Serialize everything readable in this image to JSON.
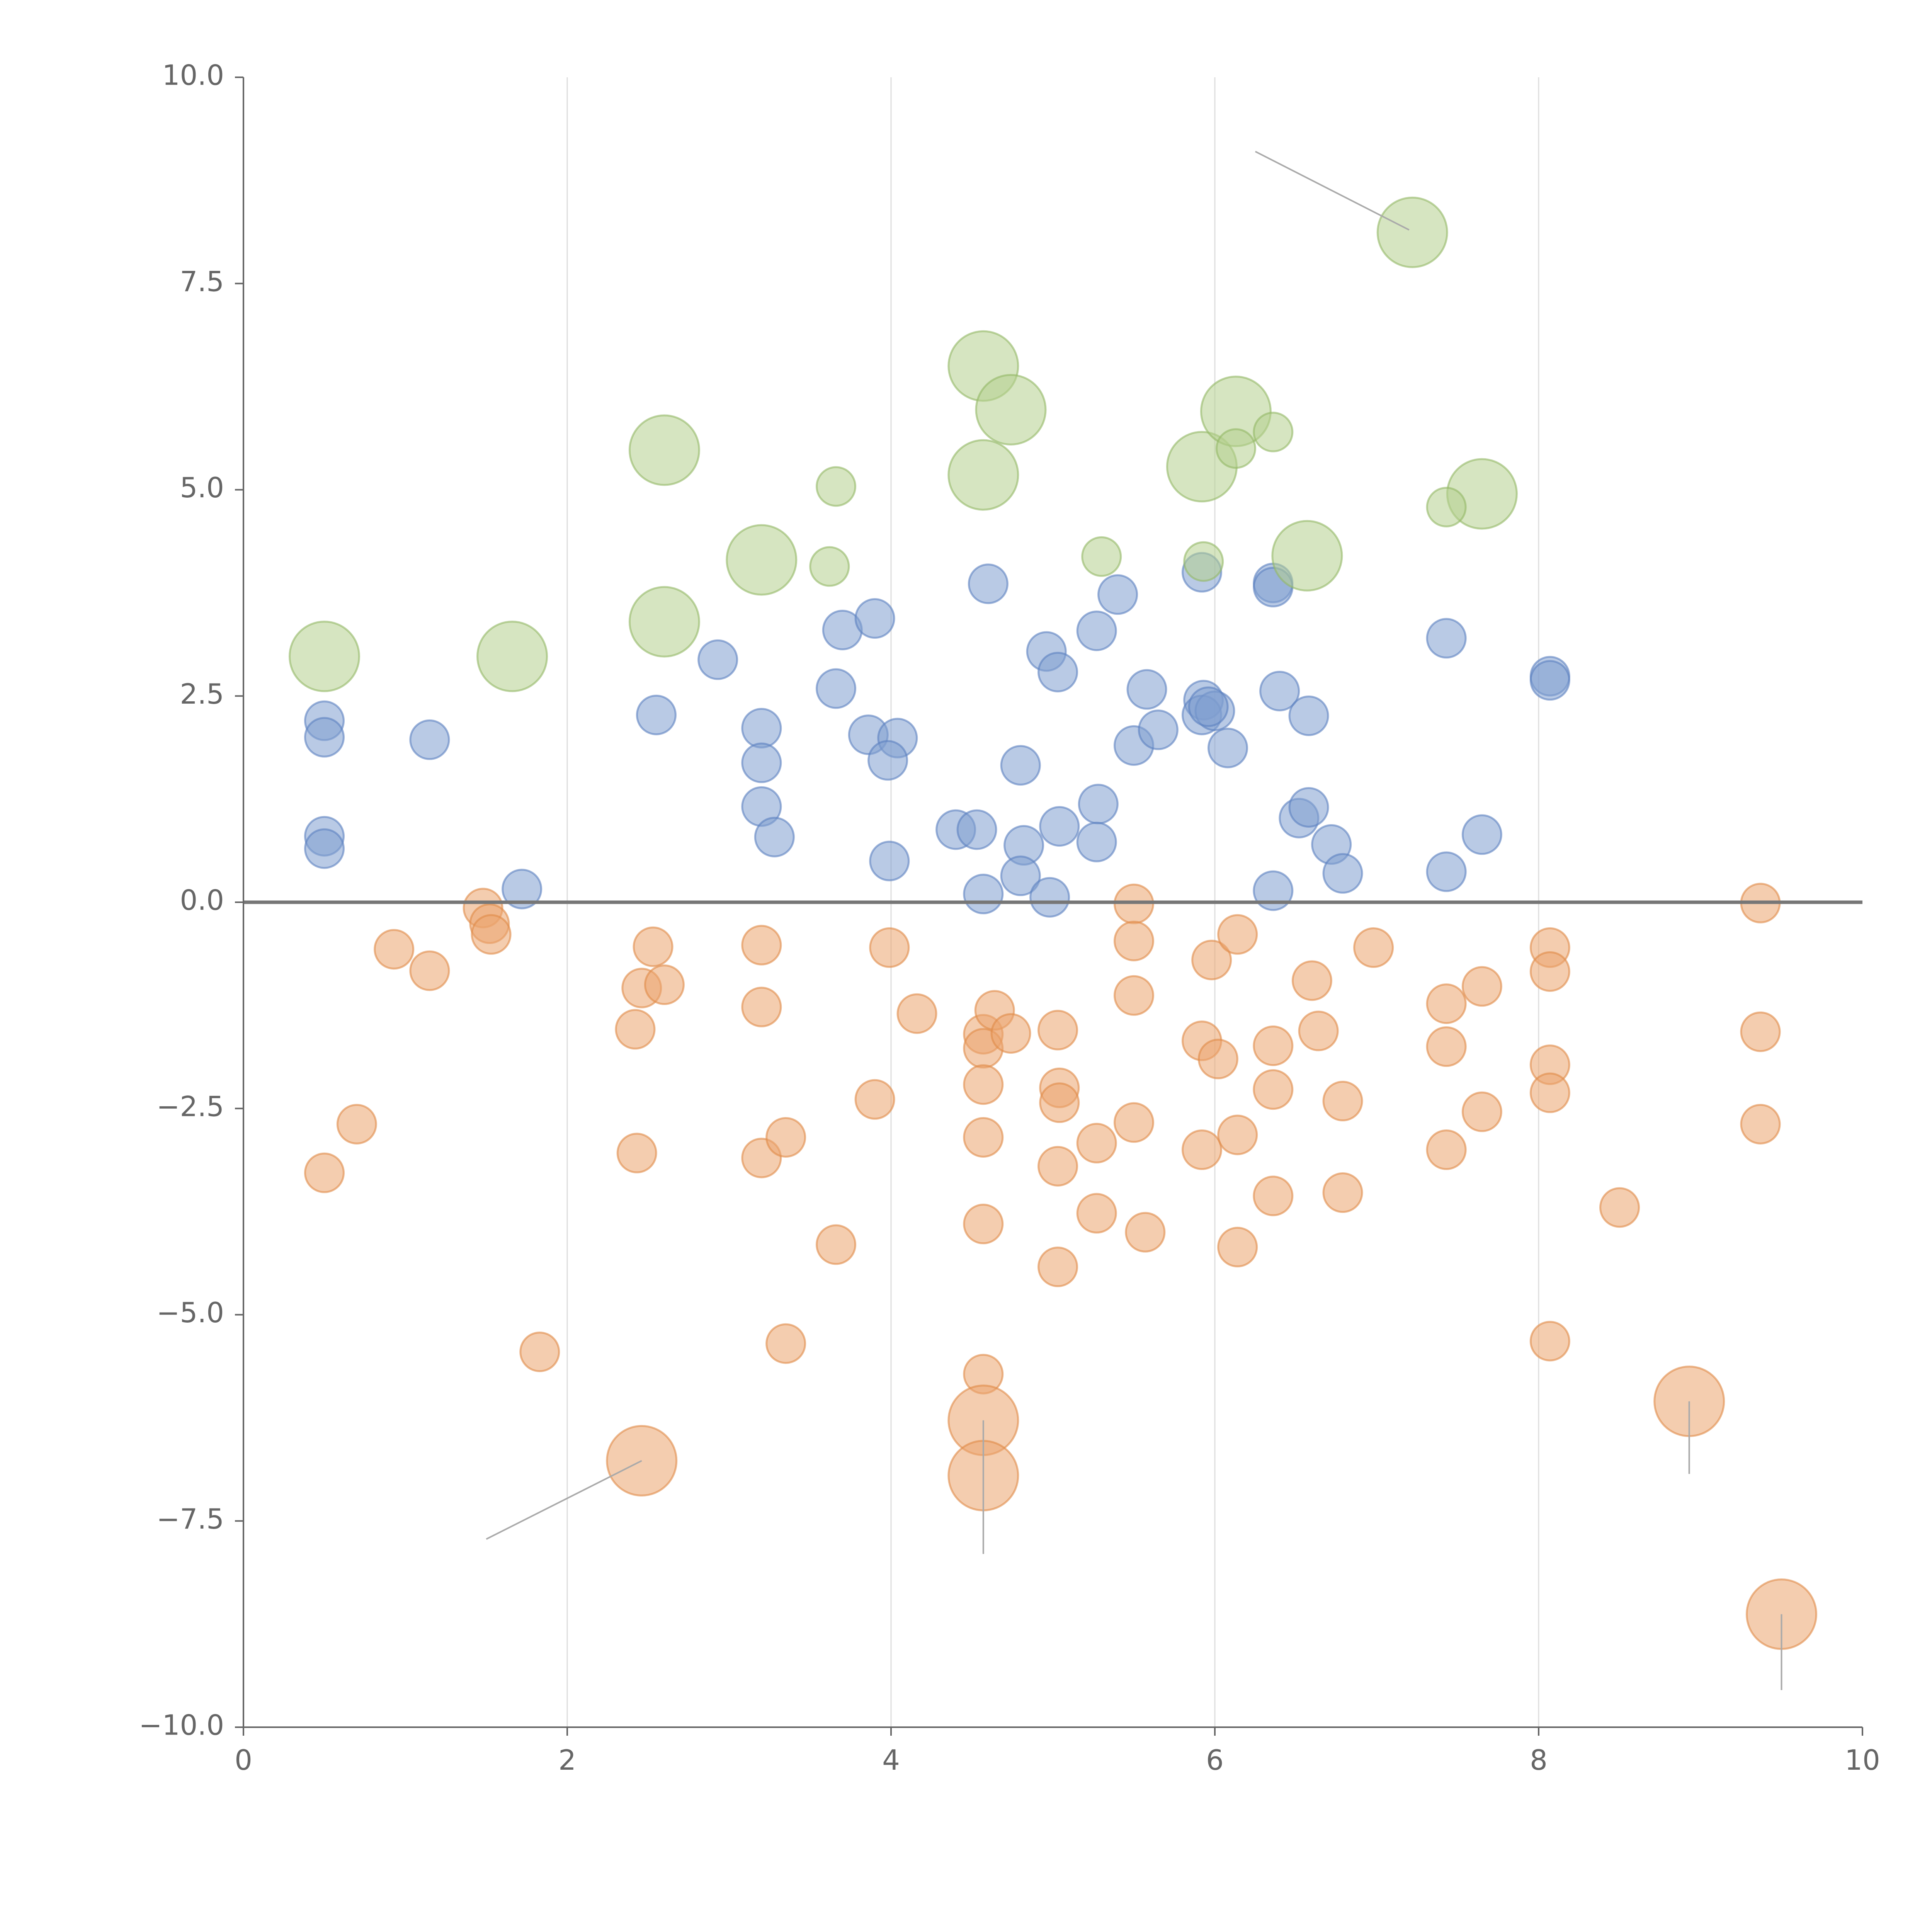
{
  "chart_data": {
    "type": "scatter",
    "title": "",
    "xlabel": "",
    "ylabel": "",
    "xlim": [
      0,
      10
    ],
    "ylim": [
      -10,
      10
    ],
    "x_ticks": [
      0,
      2,
      4,
      6,
      8,
      10
    ],
    "y_ticks": [
      10,
      7.5,
      5,
      2.5,
      0,
      -2.5,
      -5,
      -7.5,
      -10
    ],
    "x_tick_labels": [
      "0",
      "2",
      "4",
      "6",
      "8",
      "10"
    ],
    "y_tick_labels": [
      "10.0",
      "7.5",
      "5.0",
      "2.5",
      "0.0",
      "−2.5",
      "−5.0",
      "−7.5",
      "−10.0"
    ],
    "grid": "vertical",
    "reference_line_y": 0,
    "colors": {
      "blue": "#7f9fd0",
      "blue_stroke": "#5b80c0",
      "orange": "#eba46e",
      "orange_stroke": "#e08a47",
      "green": "#b5d08e",
      "green_stroke": "#93b766",
      "axis": "#666666"
    },
    "series": [
      {
        "name": "blue",
        "color_key": "blue",
        "size": 1,
        "points": [
          [
            0.5,
            2.2
          ],
          [
            0.5,
            2.0
          ],
          [
            0.5,
            0.8
          ],
          [
            0.5,
            0.65
          ],
          [
            1.15,
            1.97
          ],
          [
            1.72,
            0.16
          ],
          [
            2.55,
            2.27
          ],
          [
            2.93,
            2.94
          ],
          [
            3.2,
            2.11
          ],
          [
            3.2,
            1.69
          ],
          [
            3.2,
            1.16
          ],
          [
            3.28,
            0.79
          ],
          [
            3.66,
            2.59
          ],
          [
            3.7,
            3.3
          ],
          [
            3.9,
            3.44
          ],
          [
            3.86,
            2.03
          ],
          [
            4.04,
            1.99
          ],
          [
            3.98,
            1.72
          ],
          [
            3.99,
            0.5
          ],
          [
            4.6,
            3.86
          ],
          [
            4.4,
            0.88
          ],
          [
            4.53,
            0.88
          ],
          [
            4.57,
            0.1
          ],
          [
            4.8,
            1.66
          ],
          [
            4.82,
            0.69
          ],
          [
            4.8,
            0.32
          ],
          [
            4.98,
            0.06
          ],
          [
            4.96,
            3.04
          ],
          [
            5.03,
            2.79
          ],
          [
            5.04,
            0.92
          ],
          [
            5.27,
            3.29
          ],
          [
            5.4,
            3.73
          ],
          [
            5.28,
            1.19
          ],
          [
            5.27,
            0.73
          ],
          [
            5.5,
            1.9
          ],
          [
            5.58,
            2.58
          ],
          [
            5.65,
            2.09
          ],
          [
            5.92,
            4.0
          ],
          [
            5.93,
            2.45
          ],
          [
            5.92,
            2.27
          ],
          [
            6.0,
            2.32
          ],
          [
            5.96,
            2.37
          ],
          [
            6.08,
            1.87
          ],
          [
            6.36,
            3.87
          ],
          [
            6.36,
            3.82
          ],
          [
            6.4,
            2.56
          ],
          [
            6.58,
            2.26
          ],
          [
            6.36,
            0.14
          ],
          [
            6.52,
            1.02
          ],
          [
            6.58,
            1.15
          ],
          [
            6.72,
            0.7
          ],
          [
            6.79,
            0.35
          ],
          [
            7.43,
            3.2
          ],
          [
            7.43,
            0.37
          ],
          [
            7.65,
            0.82
          ],
          [
            8.07,
            2.74
          ],
          [
            8.07,
            2.69
          ]
        ]
      },
      {
        "name": "orange",
        "color_key": "orange",
        "size": 1,
        "points": [
          [
            0.5,
            -3.28
          ],
          [
            0.7,
            -2.69
          ],
          [
            0.93,
            -0.57
          ],
          [
            1.15,
            -0.83
          ],
          [
            1.48,
            -0.07
          ],
          [
            1.52,
            -0.26
          ],
          [
            1.53,
            -0.39
          ],
          [
            1.83,
            -5.45
          ],
          [
            2.42,
            -1.54
          ],
          [
            2.43,
            -3.04
          ],
          [
            2.46,
            -1.04
          ],
          [
            2.53,
            -0.54
          ],
          [
            2.6,
            -1.0
          ],
          [
            3.2,
            -0.52
          ],
          [
            3.2,
            -1.27
          ],
          [
            3.2,
            -3.1
          ],
          [
            3.35,
            -2.85
          ],
          [
            3.35,
            -5.35
          ],
          [
            3.66,
            -4.15
          ],
          [
            3.9,
            -2.39
          ],
          [
            3.99,
            -0.55
          ],
          [
            4.16,
            -1.35
          ],
          [
            4.57,
            -1.6
          ],
          [
            4.57,
            -1.77
          ],
          [
            4.57,
            -2.21
          ],
          [
            4.57,
            -2.85
          ],
          [
            4.57,
            -3.9
          ],
          [
            4.57,
            -5.72
          ],
          [
            4.64,
            -1.31
          ],
          [
            4.74,
            -1.59
          ],
          [
            5.03,
            -1.55
          ],
          [
            5.04,
            -2.25
          ],
          [
            5.04,
            -2.43
          ],
          [
            5.03,
            -3.2
          ],
          [
            5.03,
            -4.42
          ],
          [
            5.27,
            -2.92
          ],
          [
            5.27,
            -3.77
          ],
          [
            5.5,
            -0.02
          ],
          [
            5.5,
            -0.47
          ],
          [
            5.5,
            -1.13
          ],
          [
            5.5,
            -2.67
          ],
          [
            5.57,
            -4.0
          ],
          [
            5.92,
            -1.68
          ],
          [
            5.92,
            -3.0
          ],
          [
            5.98,
            -0.7
          ],
          [
            6.02,
            -1.9
          ],
          [
            6.14,
            -0.39
          ],
          [
            6.14,
            -2.82
          ],
          [
            6.14,
            -4.18
          ],
          [
            6.36,
            -1.74
          ],
          [
            6.36,
            -2.27
          ],
          [
            6.36,
            -3.56
          ],
          [
            6.6,
            -0.95
          ],
          [
            6.64,
            -1.56
          ],
          [
            6.79,
            -2.41
          ],
          [
            6.79,
            -3.52
          ],
          [
            6.98,
            -0.55
          ],
          [
            7.43,
            -1.23
          ],
          [
            7.43,
            -1.75
          ],
          [
            7.43,
            -3.0
          ],
          [
            7.65,
            -1.02
          ],
          [
            7.65,
            -2.54
          ],
          [
            8.07,
            -0.55
          ],
          [
            8.07,
            -0.84
          ],
          [
            8.07,
            -1.97
          ],
          [
            8.07,
            -2.31
          ],
          [
            8.07,
            -5.32
          ],
          [
            8.5,
            -3.7
          ],
          [
            9.37,
            -0.01
          ],
          [
            9.37,
            -1.57
          ],
          [
            9.37,
            -2.69
          ]
        ]
      },
      {
        "name": "orange-large",
        "color_key": "orange",
        "size": 2,
        "points": [
          [
            2.46,
            -6.77
          ],
          [
            4.57,
            -6.28
          ],
          [
            4.57,
            -6.95
          ],
          [
            8.93,
            -6.05
          ],
          [
            9.5,
            -8.63
          ]
        ]
      },
      {
        "name": "green",
        "color_key": "green",
        "size": 2,
        "points": [
          [
            0.5,
            2.98
          ],
          [
            1.66,
            2.98
          ],
          [
            2.6,
            5.48
          ],
          [
            2.6,
            3.4
          ],
          [
            3.2,
            4.15
          ],
          [
            4.57,
            6.5
          ],
          [
            4.57,
            5.18
          ],
          [
            4.74,
            5.97
          ],
          [
            5.92,
            5.28
          ],
          [
            6.13,
            5.95
          ],
          [
            6.57,
            4.2
          ],
          [
            7.22,
            8.12
          ],
          [
            7.65,
            4.95
          ]
        ]
      },
      {
        "name": "green-small",
        "color_key": "green",
        "size": 1,
        "points": [
          [
            3.66,
            5.04
          ],
          [
            3.62,
            4.07
          ],
          [
            5.3,
            4.19
          ],
          [
            5.93,
            4.13
          ],
          [
            6.13,
            5.5
          ],
          [
            6.36,
            5.7
          ],
          [
            7.43,
            4.79
          ]
        ]
      }
    ],
    "leader_lines": [
      [
        [
          7.2,
          8.15
        ],
        [
          6.25,
          9.1
        ]
      ],
      [
        [
          2.46,
          -6.77
        ],
        [
          1.5,
          -7.72
        ]
      ],
      [
        [
          4.57,
          -6.28
        ],
        [
          4.57,
          -7.9
        ]
      ],
      [
        [
          8.93,
          -6.05
        ],
        [
          8.93,
          -6.93
        ]
      ],
      [
        [
          9.5,
          -8.63
        ],
        [
          9.5,
          -9.55
        ]
      ]
    ]
  }
}
